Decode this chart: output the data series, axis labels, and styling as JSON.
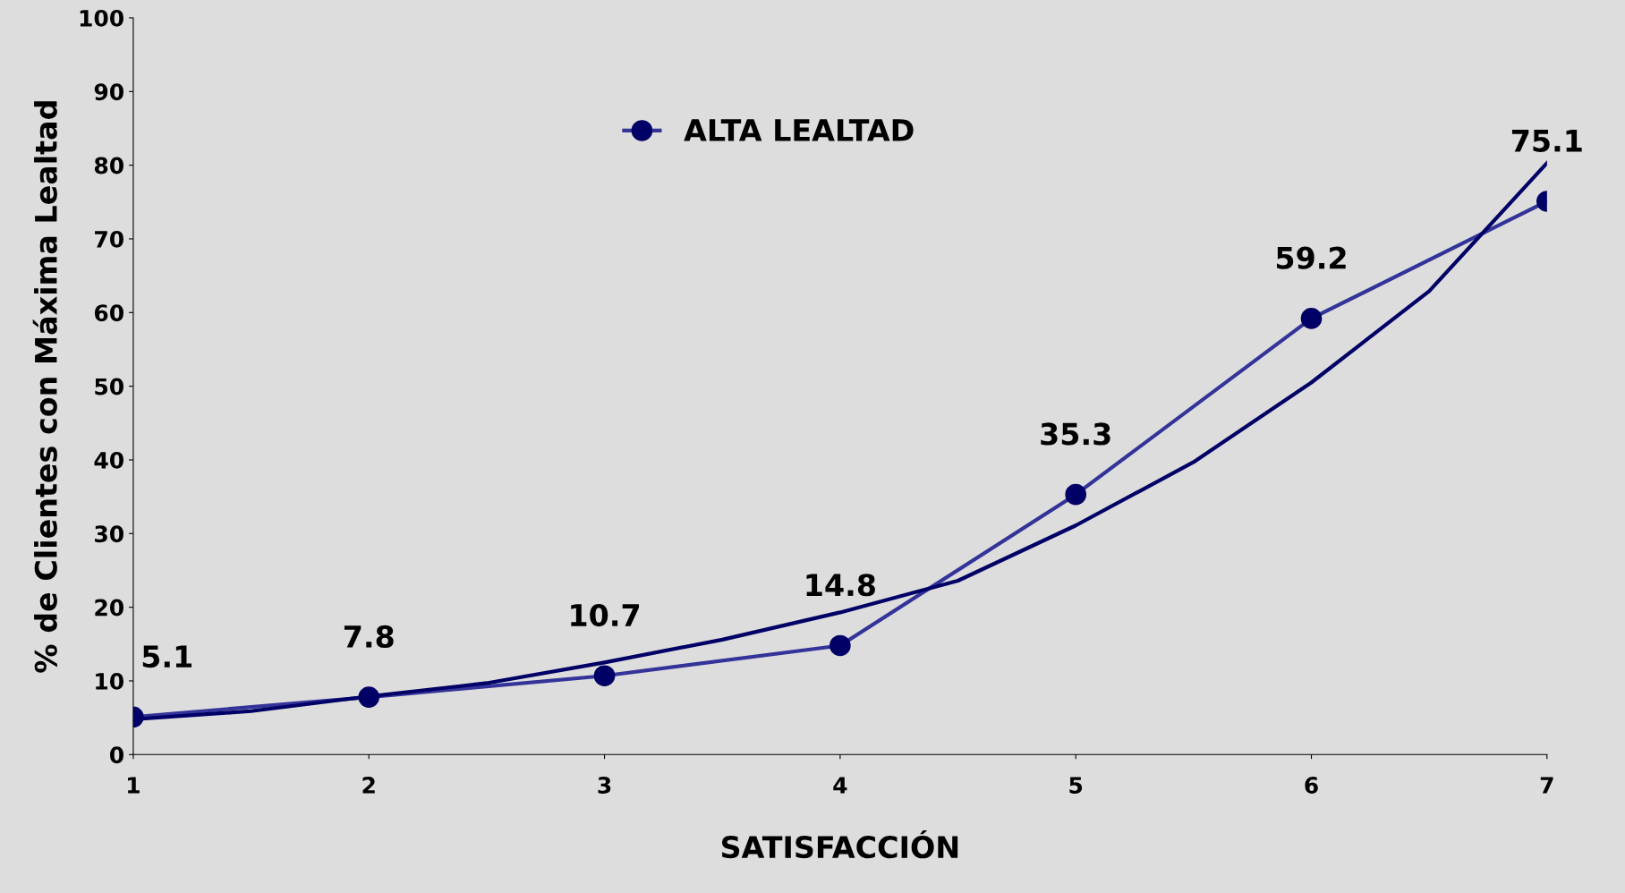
{
  "chart_data": {
    "type": "line",
    "xlabel": "SATISFACCIÓN",
    "ylabel": "% de Clientes con Máxima Lealtad",
    "x": [
      1,
      2,
      3,
      4,
      5,
      6,
      7
    ],
    "xlim": [
      1,
      7
    ],
    "xticks": [
      1,
      2,
      3,
      4,
      5,
      6,
      7
    ],
    "ylim": [
      0,
      100
    ],
    "yticks": [
      0,
      10,
      20,
      30,
      40,
      50,
      60,
      70,
      80,
      90,
      100
    ],
    "grid": false,
    "legend": "top",
    "data_labels": true,
    "series": [
      {
        "name": "ALTA LEALTAD",
        "color": "#333399",
        "marker": "circle",
        "values": [
          5.1,
          7.8,
          10.7,
          14.8,
          35.3,
          59.2,
          75.1
        ]
      },
      {
        "type": "line",
        "color": "#000066",
        "marker": "none",
        "data_labels": false,
        "x": [
          1,
          1.5,
          2,
          2.5,
          3,
          3.5,
          4,
          4.5,
          5,
          5.5,
          6,
          6.5,
          7
        ],
        "values": [
          4.8,
          5.9,
          7.9,
          9.7,
          12.5,
          15.6,
          19.3,
          23.6,
          31.1,
          39.7,
          50.5,
          62.9,
          80.3
        ]
      }
    ]
  }
}
